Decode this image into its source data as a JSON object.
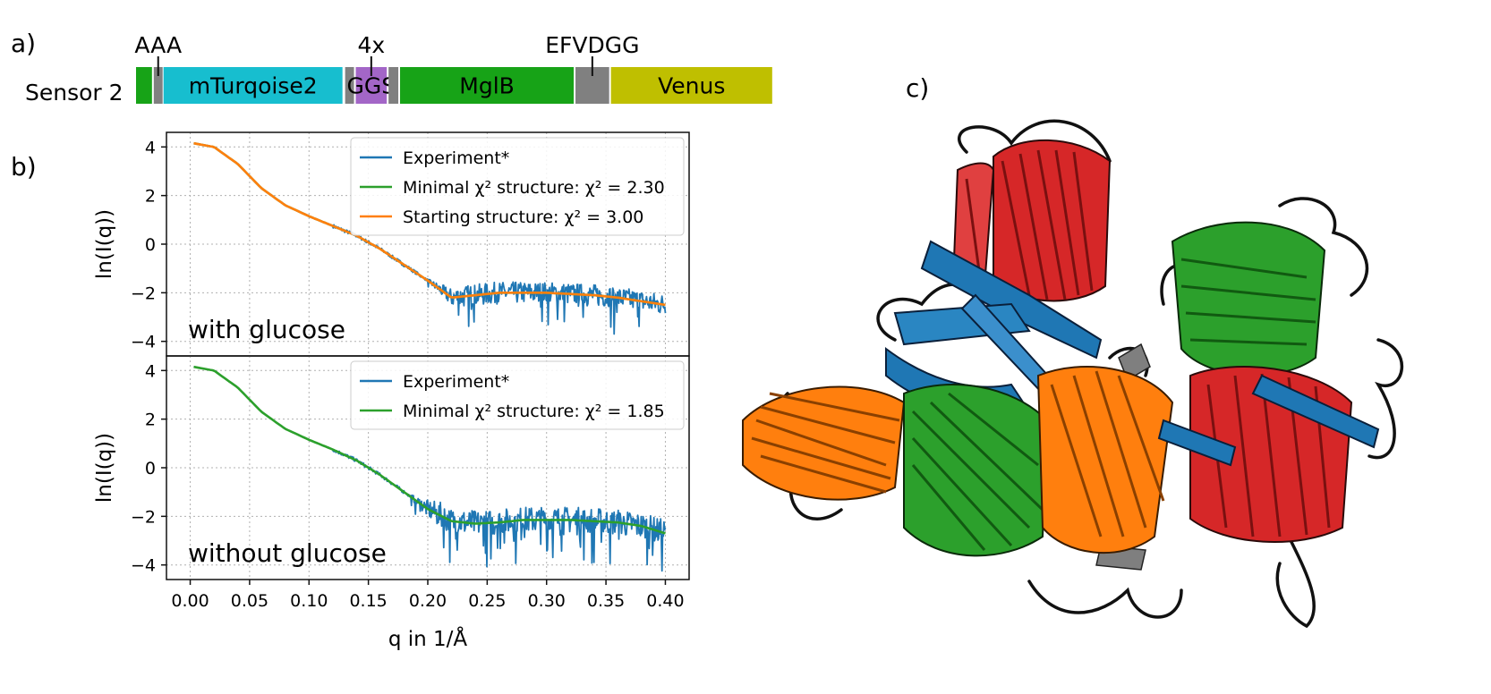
{
  "panel_labels": {
    "a": "a)",
    "b": "b)",
    "c": "c)"
  },
  "construct": {
    "name": "Sensor 2",
    "segments": [
      {
        "id": "n-term",
        "label": "",
        "color": "#17a317",
        "aa_start": 0,
        "aa_end": 18
      },
      {
        "id": "linker-aaa",
        "label": "",
        "color": "#808080",
        "aa_start": 20,
        "aa_end": 30
      },
      {
        "id": "mturquoise2",
        "label": "mTurqoise2",
        "color": "#17becf",
        "aa_start": 31,
        "aa_end": 233
      },
      {
        "id": "linker-2",
        "label": "",
        "color": "#808080",
        "aa_start": 236,
        "aa_end": 246
      },
      {
        "id": "ggs-repeat",
        "label": "GGS",
        "color": "#a366c7",
        "aa_start": 248,
        "aa_end": 283
      },
      {
        "id": "linker-3",
        "label": "",
        "color": "#808080",
        "aa_start": 285,
        "aa_end": 296
      },
      {
        "id": "mglb",
        "label": "MglB",
        "color": "#17a317",
        "aa_start": 298,
        "aa_end": 494
      },
      {
        "id": "linker-efvdgg",
        "label": "",
        "color": "#808080",
        "aa_start": 496,
        "aa_end": 534
      },
      {
        "id": "venus",
        "label": "Venus",
        "color": "#bfbf00",
        "aa_start": 536,
        "aa_end": 718
      }
    ],
    "annotations": [
      {
        "label": "AAA",
        "segment": "linker-aaa"
      },
      {
        "label": "4x",
        "segment": "ggs-repeat"
      },
      {
        "label": "EFVDGG",
        "segment": "linker-efvdgg"
      }
    ]
  },
  "chart_data": [
    {
      "type": "line",
      "panel": "with glucose",
      "annotation": "with glucose",
      "ylabel": "ln(I(q))",
      "xlim": [
        -0.02,
        0.42
      ],
      "ylim": [
        -4.6,
        4.6
      ],
      "yticks": [
        4,
        2,
        0,
        -2,
        -4
      ],
      "grid": true,
      "legend_position": "top-right",
      "series": [
        {
          "name": "Experiment*",
          "color": "#1f77b4",
          "noise": true,
          "noise_start_q": 0.195,
          "noise_amp": 0.9,
          "x": [
            0.003,
            0.02,
            0.04,
            0.06,
            0.08,
            0.1,
            0.12,
            0.14,
            0.16,
            0.18,
            0.2,
            0.22,
            0.24,
            0.26,
            0.28,
            0.3,
            0.32,
            0.34,
            0.36,
            0.38,
            0.4
          ],
          "y": [
            4.15,
            4.0,
            3.3,
            2.3,
            1.6,
            1.15,
            0.75,
            0.35,
            -0.2,
            -0.85,
            -1.5,
            -2.2,
            -2.1,
            -2.0,
            -2.0,
            -2.0,
            -2.05,
            -2.1,
            -2.2,
            -2.35,
            -2.5
          ]
        },
        {
          "name": "Minimal χ² structure: χ² = 2.30",
          "color": "#2ca02c",
          "noise": false,
          "x": [
            0.003,
            0.02,
            0.04,
            0.06,
            0.08,
            0.1,
            0.12,
            0.14,
            0.16,
            0.18,
            0.2,
            0.22,
            0.24,
            0.26,
            0.28,
            0.3,
            0.32,
            0.34,
            0.36,
            0.38,
            0.4
          ],
          "y": [
            4.15,
            4.0,
            3.3,
            2.3,
            1.6,
            1.15,
            0.75,
            0.35,
            -0.2,
            -0.85,
            -1.5,
            -2.2,
            -2.1,
            -2.0,
            -2.0,
            -2.0,
            -2.05,
            -2.1,
            -2.2,
            -2.35,
            -2.5
          ]
        },
        {
          "name": "Starting structure: χ² = 3.00",
          "color": "#ff7f0e",
          "noise": false,
          "x": [
            0.003,
            0.02,
            0.04,
            0.06,
            0.08,
            0.1,
            0.12,
            0.14,
            0.16,
            0.18,
            0.2,
            0.22,
            0.24,
            0.26,
            0.28,
            0.3,
            0.32,
            0.34,
            0.36,
            0.38,
            0.4
          ],
          "y": [
            4.15,
            4.0,
            3.3,
            2.3,
            1.6,
            1.15,
            0.75,
            0.35,
            -0.2,
            -0.85,
            -1.5,
            -2.2,
            -2.1,
            -2.0,
            -2.0,
            -2.0,
            -2.05,
            -2.1,
            -2.2,
            -2.35,
            -2.5
          ]
        }
      ]
    },
    {
      "type": "line",
      "panel": "without glucose",
      "annotation": "without glucose",
      "xlabel": "q in 1/Å",
      "ylabel": "ln(I(q))",
      "xlim": [
        -0.02,
        0.42
      ],
      "ylim": [
        -4.6,
        4.6
      ],
      "xticks": [
        0.0,
        0.05,
        0.1,
        0.15,
        0.2,
        0.25,
        0.3,
        0.35,
        0.4
      ],
      "xtick_labels": [
        "0.00",
        "0.05",
        "0.10",
        "0.15",
        "0.20",
        "0.25",
        "0.30",
        "0.35",
        "0.40"
      ],
      "yticks": [
        4,
        2,
        0,
        -2,
        -4
      ],
      "grid": true,
      "legend_position": "top-right",
      "series": [
        {
          "name": "Experiment*",
          "color": "#1f77b4",
          "noise": true,
          "noise_start_q": 0.18,
          "noise_amp": 1.1,
          "x": [
            0.003,
            0.02,
            0.04,
            0.06,
            0.08,
            0.1,
            0.12,
            0.14,
            0.16,
            0.18,
            0.2,
            0.22,
            0.24,
            0.26,
            0.28,
            0.3,
            0.32,
            0.34,
            0.36,
            0.38,
            0.4
          ],
          "y": [
            4.15,
            4.0,
            3.3,
            2.3,
            1.6,
            1.15,
            0.75,
            0.3,
            -0.3,
            -1.0,
            -1.7,
            -2.2,
            -2.3,
            -2.25,
            -2.15,
            -2.15,
            -2.15,
            -2.2,
            -2.25,
            -2.4,
            -2.7
          ]
        },
        {
          "name": "Minimal χ² structure: χ² = 1.85",
          "color": "#2ca02c",
          "noise": false,
          "x": [
            0.003,
            0.02,
            0.04,
            0.06,
            0.08,
            0.1,
            0.12,
            0.14,
            0.16,
            0.18,
            0.2,
            0.22,
            0.24,
            0.26,
            0.28,
            0.3,
            0.32,
            0.34,
            0.36,
            0.38,
            0.4
          ],
          "y": [
            4.15,
            4.0,
            3.3,
            2.3,
            1.6,
            1.15,
            0.75,
            0.3,
            -0.3,
            -1.0,
            -1.7,
            -2.2,
            -2.3,
            -2.25,
            -2.15,
            -2.15,
            -2.15,
            -2.2,
            -2.25,
            -2.4,
            -2.7
          ]
        }
      ]
    }
  ],
  "structure_image": {
    "description_name": "protein-cartoon",
    "domain_colors": [
      "#d62728",
      "#1f77b4",
      "#2ca02c",
      "#ff7f0e",
      "#808080"
    ]
  }
}
